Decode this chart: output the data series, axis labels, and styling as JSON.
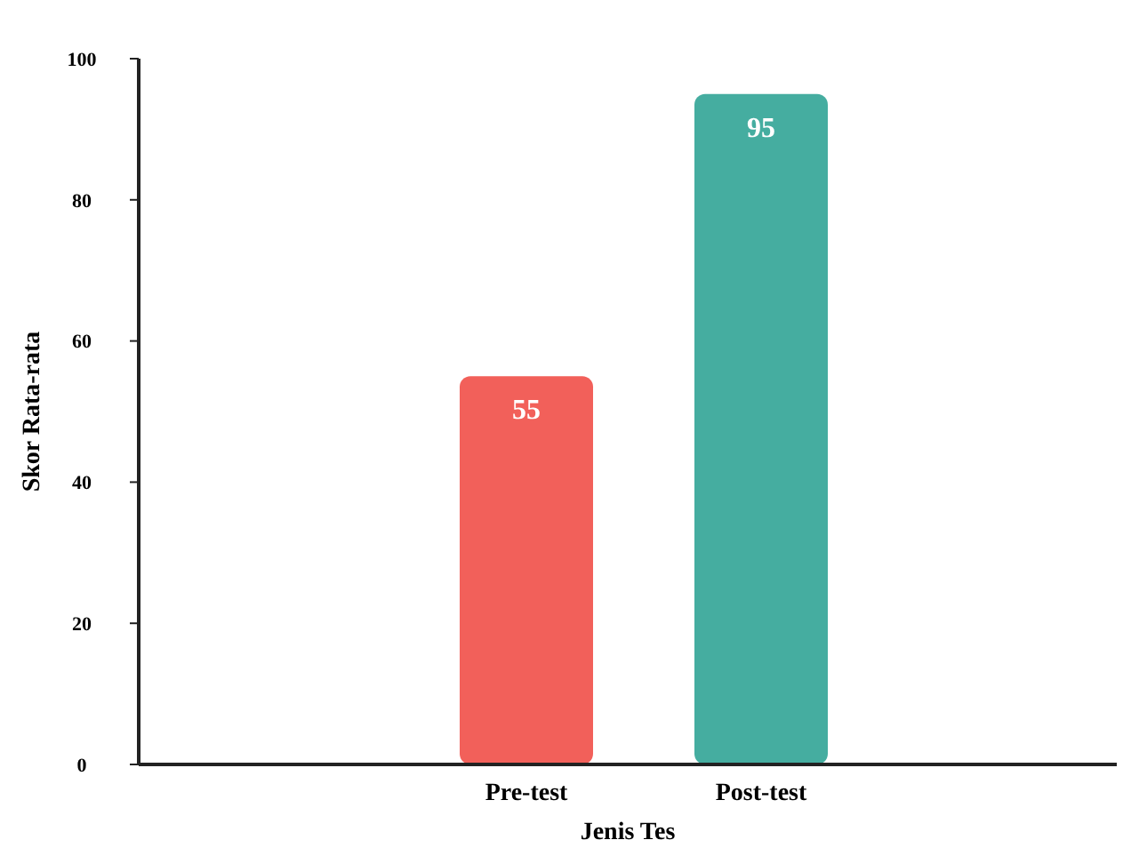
{
  "chart_data": {
    "type": "bar",
    "xlabel": "Jenis Tes",
    "ylabel": "Skor Rata-rata",
    "categories": [
      "Pre-test",
      "Post-test"
    ],
    "values": [
      55,
      95
    ],
    "colors": [
      "#f2605a",
      "#45ada0"
    ],
    "ylim": [
      0,
      100
    ],
    "yticks": [
      0,
      20,
      40,
      60,
      80,
      100
    ],
    "grid": false,
    "data_labels": true
  }
}
